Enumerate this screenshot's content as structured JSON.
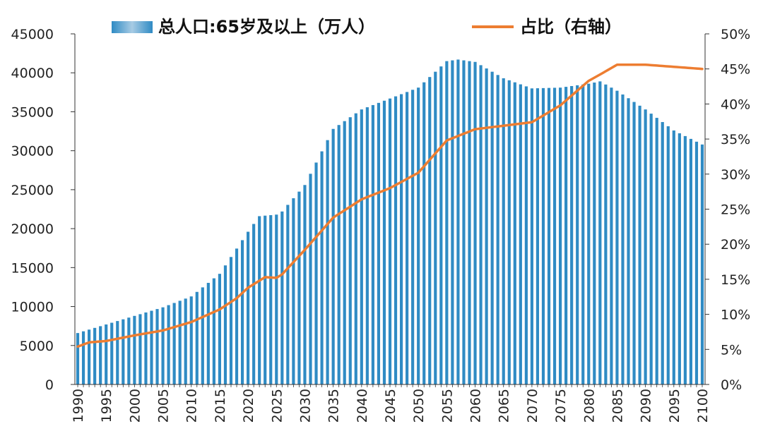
{
  "chart_data": {
    "type": "bar+line",
    "legend": {
      "bar_label": "总人口:65岁及以上（万人）",
      "line_label": "占比（右轴）",
      "placement": "top-center"
    },
    "colors": {
      "bar": "#2f8bc4",
      "line": "#ed7d31",
      "axis": "#333333"
    },
    "x_labels": [
      "1990",
      "1995",
      "2000",
      "2005",
      "2010",
      "2015",
      "2020",
      "2025",
      "2030",
      "2035",
      "2040",
      "2045",
      "2050",
      "2055",
      "2060",
      "2065",
      "2070",
      "2075",
      "2080",
      "2085",
      "2090",
      "2095",
      "2100"
    ],
    "y_left": {
      "ylim": [
        0,
        45000
      ],
      "ticks": [
        "0",
        "5000",
        "10000",
        "15000",
        "20000",
        "25000",
        "30000",
        "35000",
        "40000",
        "45000"
      ]
    },
    "y_right": {
      "ylim": [
        0,
        50
      ],
      "ticks": [
        "0%",
        "5%",
        "10%",
        "15%",
        "20%",
        "25%",
        "30%",
        "35%",
        "40%",
        "45%",
        "50%"
      ]
    },
    "bar_anchor_years": [
      1990,
      1995,
      2000,
      2005,
      2010,
      2015,
      2020,
      2022,
      2025,
      2026,
      2030,
      2035,
      2040,
      2045,
      2050,
      2055,
      2057,
      2060,
      2065,
      2070,
      2075,
      2080,
      2082,
      2085,
      2090,
      2095,
      2100
    ],
    "bar_anchor_values": [
      6600,
      7700,
      8800,
      9900,
      11300,
      14200,
      19600,
      21600,
      21800,
      22200,
      25600,
      32800,
      35300,
      36700,
      38100,
      41500,
      41700,
      41400,
      39300,
      38000,
      38100,
      38600,
      38900,
      37700,
      35300,
      32600,
      30800
    ],
    "line_anchor_years": [
      1990,
      1992,
      1995,
      2000,
      2005,
      2010,
      2015,
      2018,
      2020,
      2023,
      2025,
      2026,
      2030,
      2035,
      2040,
      2045,
      2050,
      2055,
      2060,
      2065,
      2070,
      2075,
      2080,
      2082,
      2085,
      2090,
      2095,
      2100
    ],
    "line_anchor_values": [
      5.4,
      6.0,
      6.2,
      7.0,
      7.7,
      8.9,
      10.7,
      12.3,
      13.8,
      15.3,
      15.2,
      15.7,
      19.2,
      23.8,
      26.4,
      28.0,
      30.2,
      34.8,
      36.4,
      36.9,
      37.4,
      39.8,
      43.3,
      44.2,
      45.6,
      45.6,
      45.3,
      45.0
    ]
  }
}
